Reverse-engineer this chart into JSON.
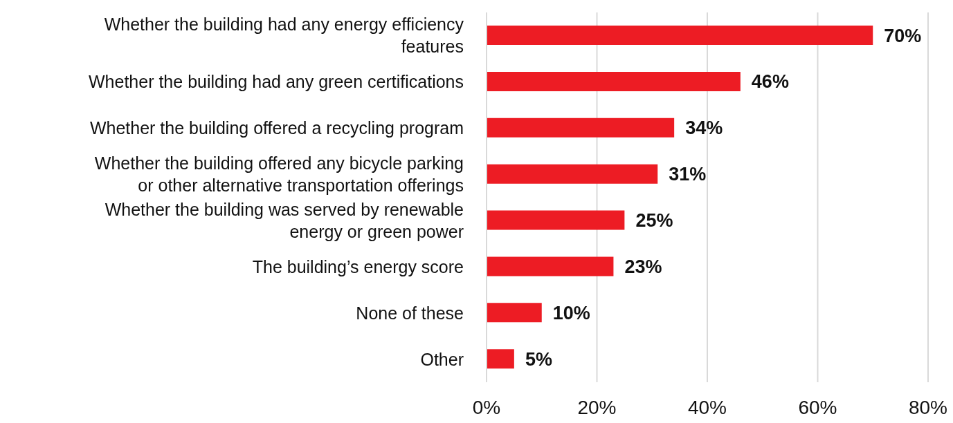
{
  "chart_data": {
    "type": "bar",
    "orientation": "horizontal",
    "categories": [
      "Whether the building had any energy efficiency features",
      "Whether the building had any green certifications",
      "Whether the building offered a recycling program",
      "Whether the building offered any bicycle parking or other alternative transportation offerings",
      "Whether the building was served by renewable energy or green power",
      "The building’s energy score",
      "None of these",
      "Other"
    ],
    "values": [
      70,
      46,
      34,
      31,
      25,
      23,
      10,
      5
    ],
    "value_labels": [
      "70%",
      "46%",
      "34%",
      "31%",
      "25%",
      "23%",
      "10%",
      "5%"
    ],
    "color": "#ed1c24",
    "xlim": [
      0,
      80
    ],
    "xticks": [
      {
        "value": 0,
        "label": "0%"
      },
      {
        "value": 20,
        "label": "20%"
      },
      {
        "value": 40,
        "label": "40%"
      },
      {
        "value": 60,
        "label": "60%"
      },
      {
        "value": 80,
        "label": "80%"
      }
    ],
    "grid": "x",
    "legend": false
  }
}
